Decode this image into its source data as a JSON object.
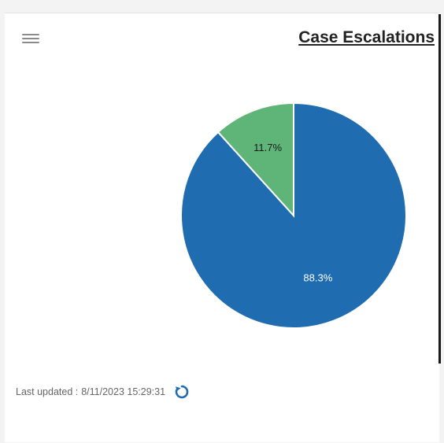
{
  "widget": {
    "title": "Case Escalations",
    "menu_icon": "hamburger-menu-icon",
    "refresh_icon": "refresh-icon",
    "last_updated_label": "Last updated :",
    "last_updated_value": "8/11/2023 15:29:31"
  },
  "chart_data": {
    "type": "pie",
    "title": "Case Escalations",
    "slices": [
      {
        "label": "88.3%",
        "value": 88.3,
        "color": "#1f6cb0",
        "label_color": "#ffffff"
      },
      {
        "label": "11.7%",
        "value": 11.7,
        "color": "#5fb478",
        "label_color": "#1a1a1a"
      }
    ],
    "start_angle_deg": 0,
    "direction": "clockwise",
    "legend": "none"
  }
}
